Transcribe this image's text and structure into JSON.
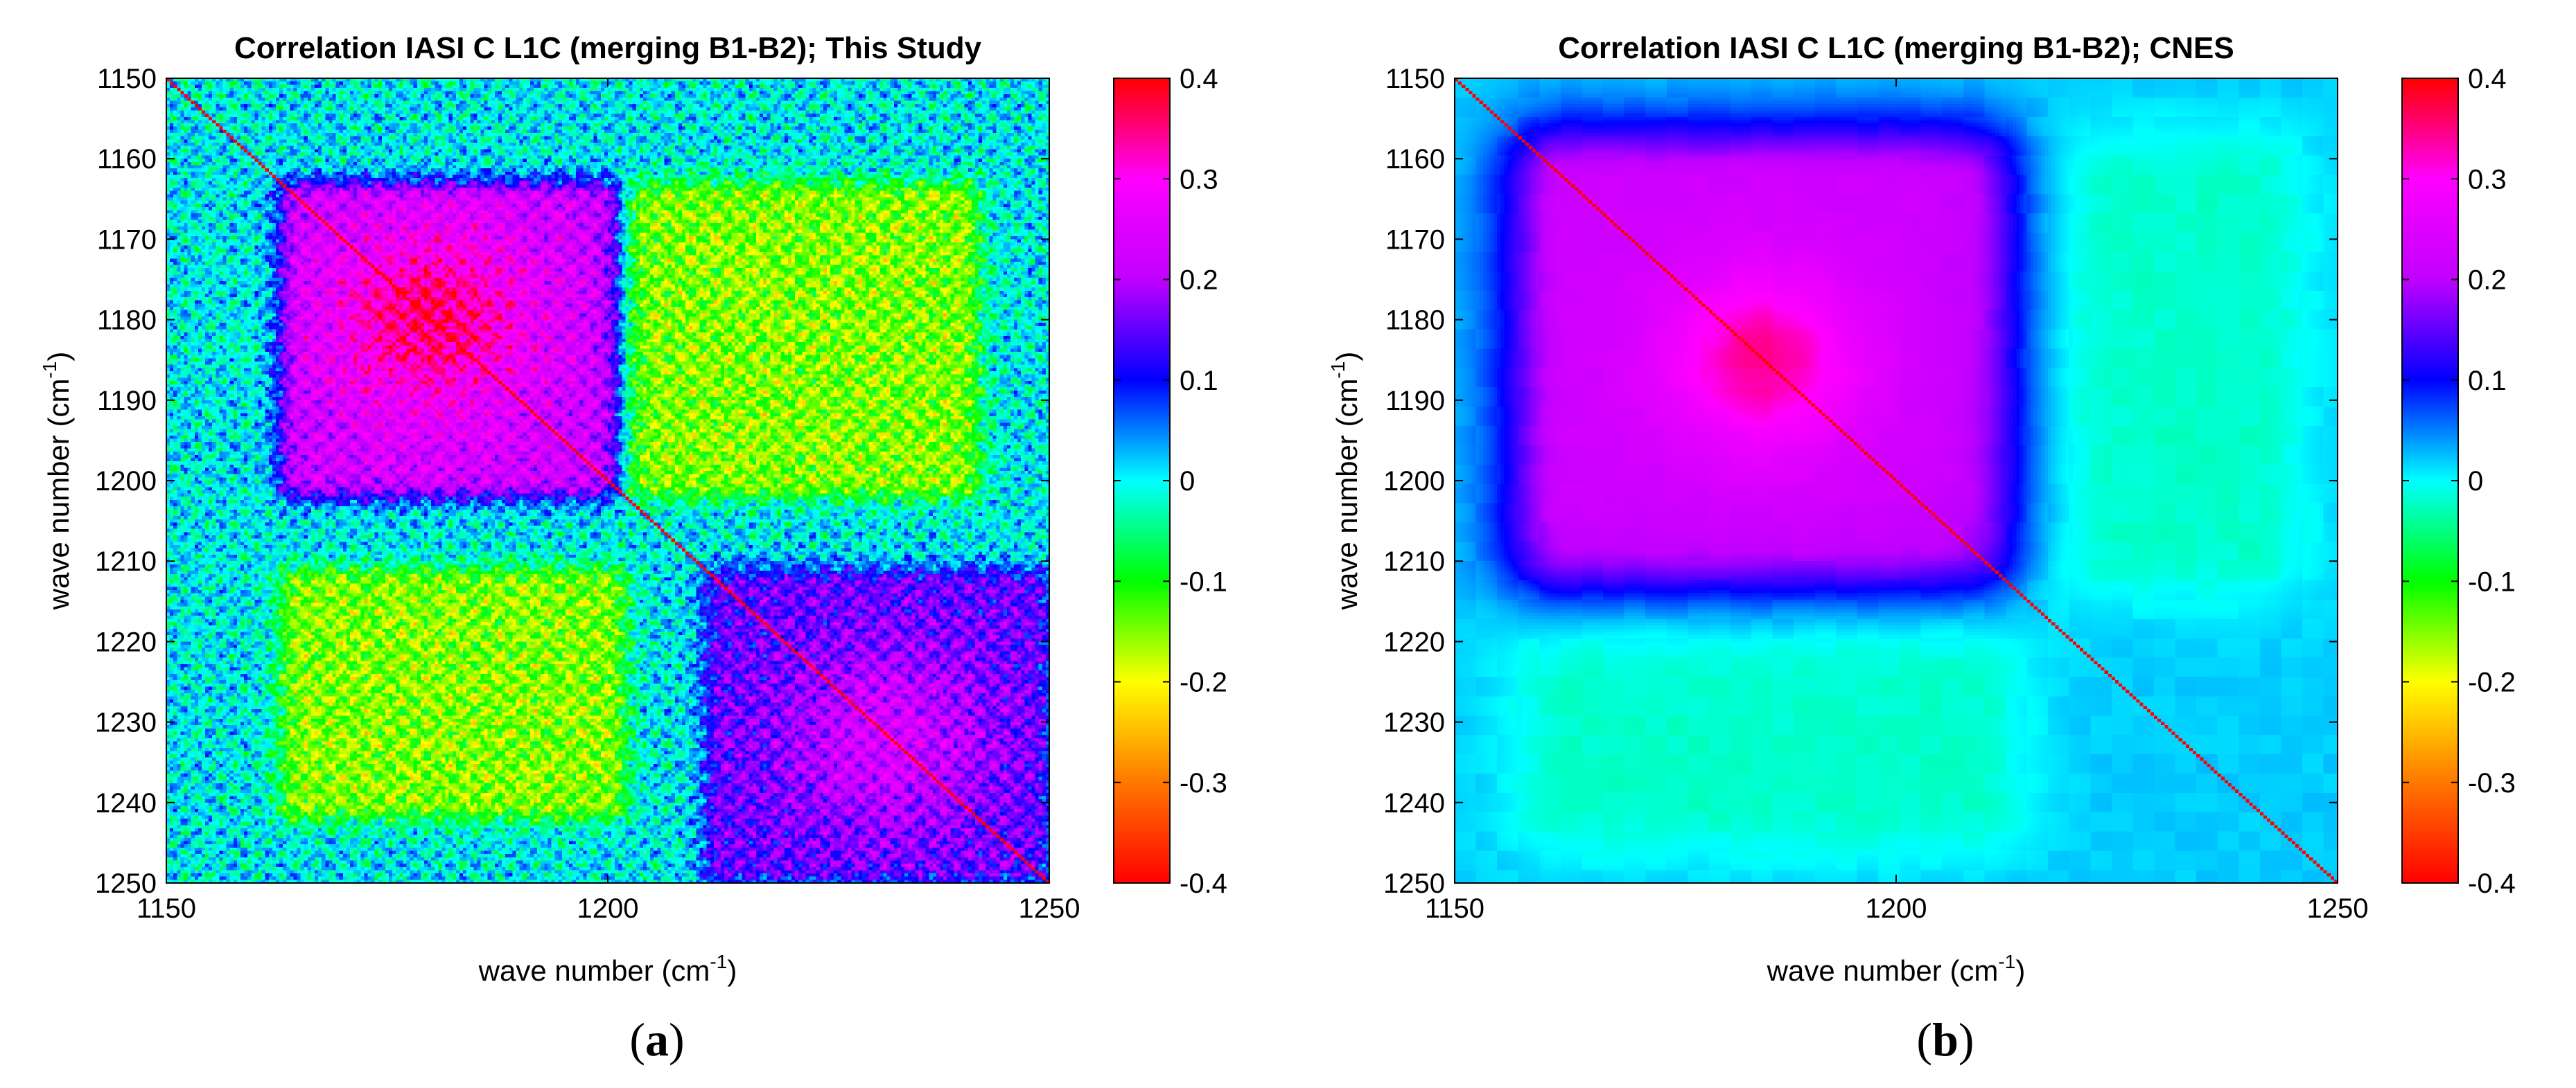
{
  "figure": {
    "panels": [
      {
        "id": "a",
        "caption": "a",
        "title": "Correlation IASI C L1C  (merging B1-B2); This Study"
      },
      {
        "id": "b",
        "caption": "b",
        "title": "Correlation IASI C L1C  (merging B1-B2); CNES"
      }
    ],
    "xlabel": "wave number (cm",
    "ylabel": "wave number (cm",
    "unit_exponent": "-1",
    "label_close": ")",
    "colorbar_ticks": [
      "0.4",
      "0.3",
      "0.2",
      "0.1",
      "0",
      "-0.1",
      "-0.2",
      "-0.3",
      "-0.4"
    ],
    "colormap": [
      "#ff0000",
      "#ff7700",
      "#ffff00",
      "#00ff00",
      "#00ffff",
      "#0000ff",
      "#c000ff",
      "#ff00ff",
      "#ff0000"
    ]
  },
  "chart_data": [
    {
      "type": "heatmap",
      "title": "Correlation IASI C L1C  (merging B1-B2); This Study",
      "xlabel": "wave number (cm-1)",
      "ylabel": "wave number (cm-1)",
      "xlim": [
        1150,
        1250
      ],
      "ylim": [
        1150,
        1250
      ],
      "x_ticks": [
        "1150",
        "1200",
        "1250"
      ],
      "y_ticks": [
        "1150",
        "1160",
        "1170",
        "1180",
        "1190",
        "1200",
        "1210",
        "1220",
        "1230",
        "1240",
        "1250"
      ],
      "clim": [
        -0.4,
        0.4
      ],
      "diagonal_value": 1.0,
      "background_value": 0.0,
      "regions": [
        {
          "x": [
            1165,
            1200
          ],
          "y": [
            1165,
            1200
          ],
          "value": 0.3,
          "peak_center": [
            1180,
            1180
          ]
        },
        {
          "x": [
            1213,
            1248
          ],
          "y": [
            1213,
            1248
          ],
          "value": 0.2,
          "peak_center": [
            1232,
            1232
          ]
        },
        {
          "x": [
            1203,
            1240
          ],
          "y": [
            1165,
            1200
          ],
          "value": -0.15
        },
        {
          "x": [
            1165,
            1200
          ],
          "y": [
            1213,
            1240
          ],
          "value": -0.15
        }
      ]
    },
    {
      "type": "heatmap",
      "title": "Correlation IASI C L1C  (merging B1-B2); CNES",
      "xlabel": "wave number (cm-1)",
      "ylabel": "wave number (cm-1)",
      "xlim": [
        1150,
        1250
      ],
      "ylim": [
        1150,
        1250
      ],
      "x_ticks": [
        "1150",
        "1200",
        "1250"
      ],
      "y_ticks": [
        "1150",
        "1160",
        "1170",
        "1180",
        "1190",
        "1200",
        "1210",
        "1220",
        "1230",
        "1240",
        "1250"
      ],
      "clim": [
        -0.4,
        0.4
      ],
      "diagonal_value": 1.0,
      "background_value": 0.02,
      "regions": [
        {
          "x": [
            1163,
            1208
          ],
          "y": [
            1163,
            1208
          ],
          "value": 0.27,
          "peak_center": [
            1185,
            1185
          ]
        },
        {
          "x": [
            1215,
            1240
          ],
          "y": [
            1163,
            1208
          ],
          "value": -0.04
        },
        {
          "x": [
            1163,
            1208
          ],
          "y": [
            1215,
            1240
          ],
          "value": -0.04
        }
      ]
    }
  ]
}
